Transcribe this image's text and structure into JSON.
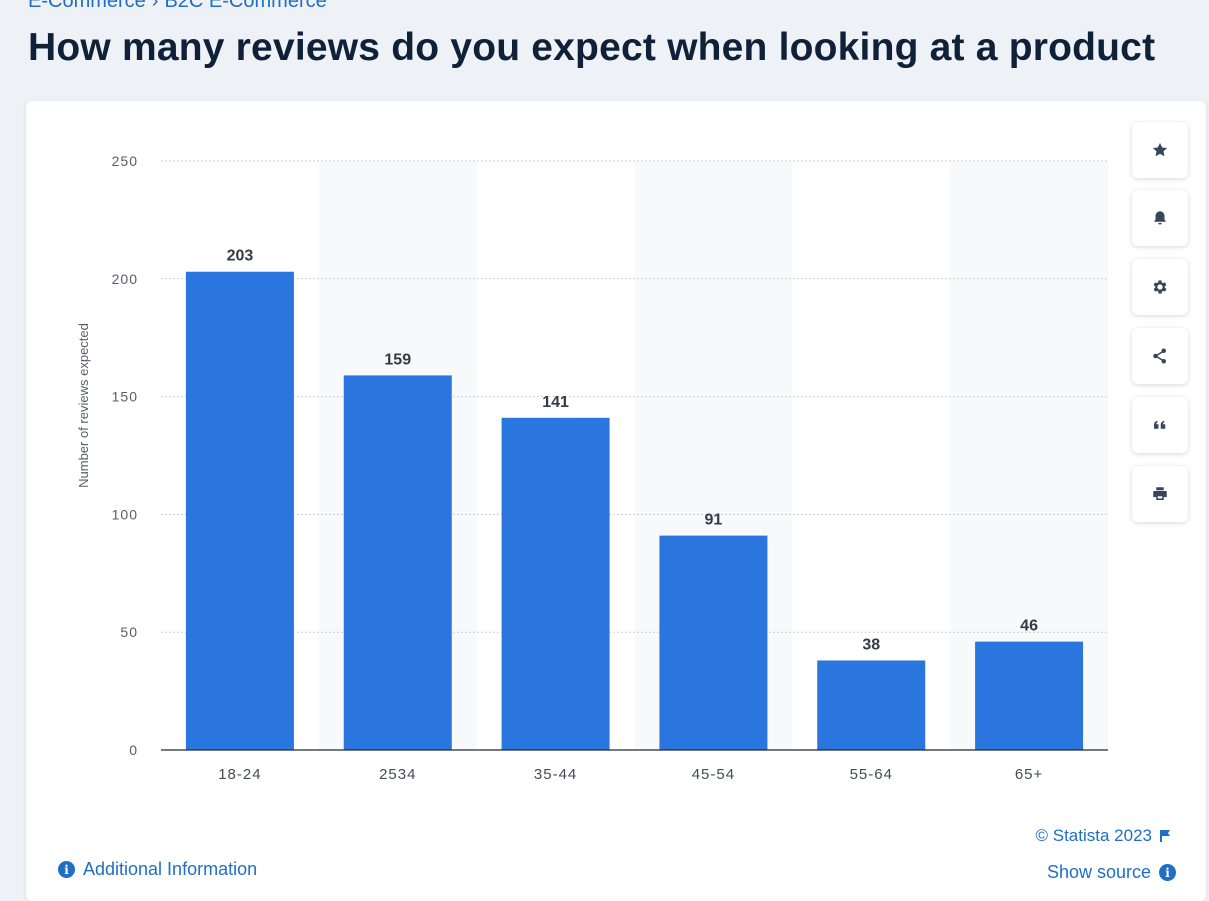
{
  "breadcrumb": {
    "items": [
      "E-Commerce",
      "B2C E-Commerce"
    ],
    "separator": "›"
  },
  "page": {
    "title": "How many reviews do you expect when looking at a product"
  },
  "chart_data": {
    "type": "bar",
    "categories": [
      "18-24",
      "2534",
      "35-44",
      "45-54",
      "55-64",
      "65+"
    ],
    "series": [
      {
        "values": [
          203,
          159,
          141,
          91,
          38,
          46
        ]
      }
    ],
    "data_labels": [
      "203",
      "159",
      "141",
      "91",
      "38",
      "46"
    ],
    "ylabel": "Number of reviews expected",
    "xlabel": "",
    "ylim": [
      0,
      250
    ],
    "yticks": [
      0,
      50,
      100,
      150,
      200,
      250
    ],
    "grid": true,
    "bar_color": "#2b76de",
    "alt_band_color": "#f8f9fb"
  },
  "toolbar": {
    "items": [
      {
        "icon": "star-icon",
        "label": "favorite"
      },
      {
        "icon": "bell-icon",
        "label": "notification"
      },
      {
        "icon": "gear-icon",
        "label": "settings"
      },
      {
        "icon": "share-icon",
        "label": "share"
      },
      {
        "icon": "quote-icon",
        "label": "cite"
      },
      {
        "icon": "printer-icon",
        "label": "print"
      }
    ]
  },
  "footer": {
    "credit": "© Statista 2023",
    "show_source": "Show source",
    "additional_info": "Additional Information"
  }
}
